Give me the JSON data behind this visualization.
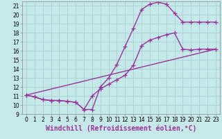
{
  "xlabel": "Windchill (Refroidissement éolien,°C)",
  "xlim": [
    -0.5,
    23.5
  ],
  "ylim": [
    9,
    21.5
  ],
  "xticks": [
    0,
    1,
    2,
    3,
    4,
    5,
    6,
    7,
    8,
    9,
    10,
    11,
    12,
    13,
    14,
    15,
    16,
    17,
    18,
    19,
    20,
    21,
    22,
    23
  ],
  "yticks": [
    9,
    10,
    11,
    12,
    13,
    14,
    15,
    16,
    17,
    18,
    19,
    20,
    21
  ],
  "bg_color": "#c5e8e8",
  "grid_color": "#a8d0d0",
  "line_color": "#993399",
  "line1_x": [
    0,
    1,
    2,
    3,
    4,
    5,
    6,
    7,
    8,
    9,
    10,
    11,
    12,
    13,
    14,
    15,
    16,
    17,
    18,
    19,
    20,
    21,
    22,
    23
  ],
  "line1_y": [
    11.1,
    10.9,
    10.6,
    10.5,
    10.5,
    10.4,
    10.3,
    9.5,
    11.0,
    11.8,
    12.3,
    12.8,
    13.3,
    14.4,
    16.6,
    17.2,
    17.5,
    17.8,
    18.0,
    16.2,
    16.1,
    16.2,
    16.2,
    16.2
  ],
  "line2_x": [
    0,
    1,
    2,
    3,
    4,
    5,
    6,
    7,
    8,
    9,
    10,
    11,
    12,
    13,
    14,
    15,
    16,
    17,
    18,
    19,
    20,
    21,
    22,
    23
  ],
  "line2_y": [
    11.1,
    10.9,
    10.6,
    10.5,
    10.5,
    10.4,
    10.3,
    9.5,
    9.5,
    12.0,
    13.0,
    14.5,
    16.5,
    18.5,
    20.6,
    21.2,
    21.4,
    21.2,
    20.2,
    19.2,
    19.2,
    19.2,
    19.2,
    19.2
  ],
  "line3_x": [
    0,
    23
  ],
  "line3_y": [
    11.1,
    16.2
  ],
  "marker": "+",
  "markersize": 4,
  "linewidth": 1.0,
  "xlabel_fontsize": 7,
  "tick_fontsize": 5.5
}
